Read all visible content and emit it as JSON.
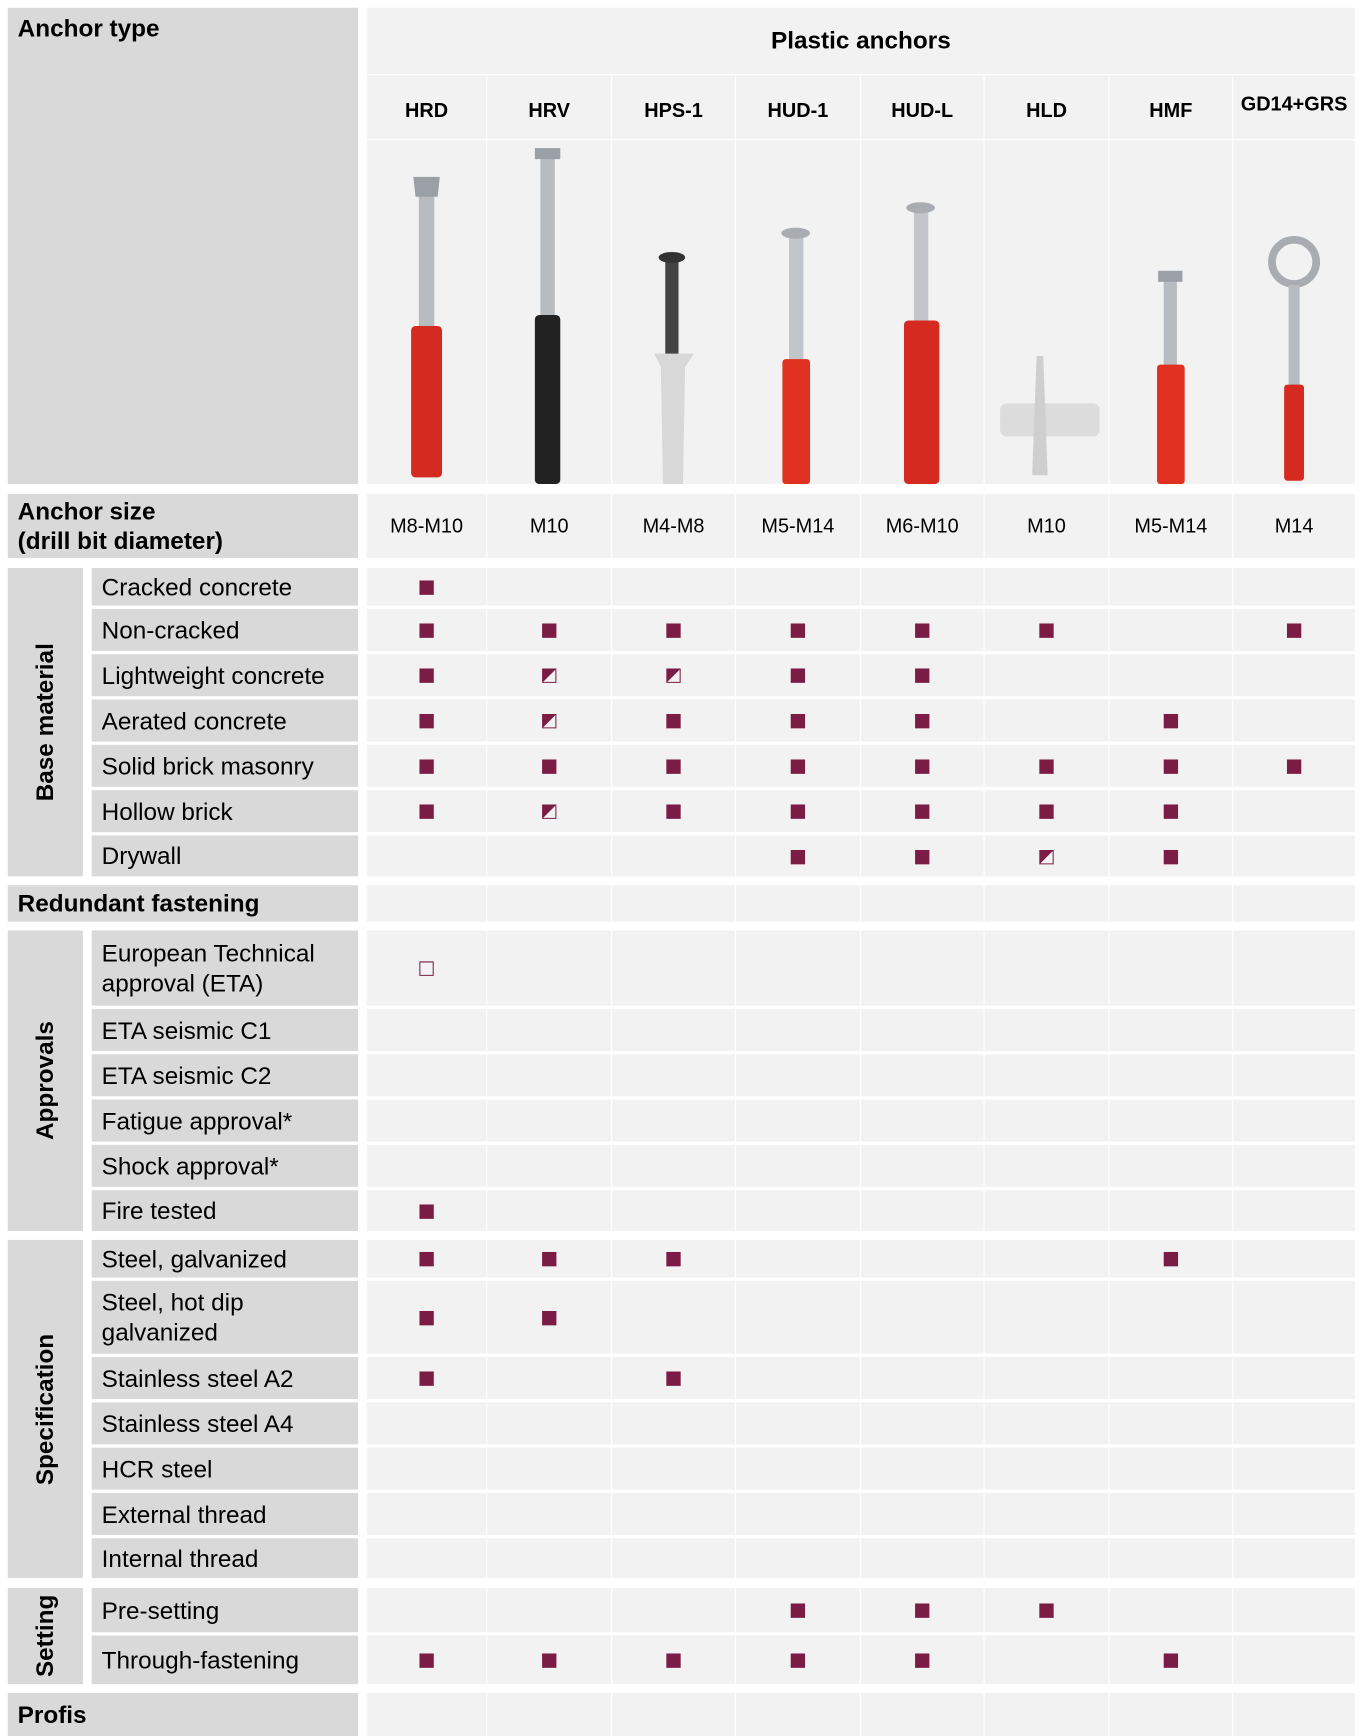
{
  "header": {
    "title": "Anchor type",
    "group": "Plastic anchors",
    "size_label": "Anchor size\n(drill bit diameter)"
  },
  "columns": [
    {
      "name": "HRD",
      "size": "M8-M10"
    },
    {
      "name": "HRV",
      "size": "M10"
    },
    {
      "name": "HPS-1",
      "size": "M4-M8"
    },
    {
      "name": "HUD-1",
      "size": "M5-M14"
    },
    {
      "name": "HUD-L",
      "size": "M6-M10"
    },
    {
      "name": "HLD",
      "size": "M10"
    },
    {
      "name": "HMF",
      "size": "M5-M14"
    },
    {
      "name": "GD14+GRS",
      "size": "M14"
    }
  ],
  "sections": [
    {
      "title": "Base material",
      "rows": [
        {
          "label": "Cracked concrete",
          "marks": [
            "■",
            null,
            null,
            null,
            null,
            null,
            null,
            null
          ]
        },
        {
          "label": "Non-cracked",
          "marks": [
            "■",
            "■",
            "■",
            "■",
            "■",
            "■",
            null,
            "■"
          ]
        },
        {
          "label": "Lightweight concrete",
          "marks": [
            "■",
            "◩",
            "◩",
            "■",
            "■",
            null,
            null,
            null
          ]
        },
        {
          "label": "Aerated concrete",
          "marks": [
            "■",
            "◩",
            "■",
            "■",
            "■",
            null,
            "■",
            null
          ]
        },
        {
          "label": "Solid brick masonry",
          "marks": [
            "■",
            "■",
            "■",
            "■",
            "■",
            "■",
            "■",
            "■"
          ]
        },
        {
          "label": "Hollow brick",
          "marks": [
            "■",
            "◩",
            "■",
            "■",
            "■",
            "■",
            "■",
            null
          ]
        },
        {
          "label": "Drywall",
          "marks": [
            null,
            null,
            null,
            "■",
            "■",
            "◩",
            "■",
            null
          ]
        }
      ]
    },
    {
      "title": "Redundant fastening",
      "marks": [
        null,
        null,
        null,
        null,
        null,
        null,
        null,
        null
      ]
    },
    {
      "title": "Approvals",
      "rows": [
        {
          "label": "European Technical\napproval (ETA)",
          "marks": [
            "□",
            null,
            null,
            null,
            null,
            null,
            null,
            null
          ]
        },
        {
          "label": "ETA seismic C1",
          "marks": [
            null,
            null,
            null,
            null,
            null,
            null,
            null,
            null
          ]
        },
        {
          "label": "ETA seismic C2",
          "marks": [
            null,
            null,
            null,
            null,
            null,
            null,
            null,
            null
          ]
        },
        {
          "label": "Fatigue approval*",
          "marks": [
            null,
            null,
            null,
            null,
            null,
            null,
            null,
            null
          ]
        },
        {
          "label": "Shock approval*",
          "marks": [
            null,
            null,
            null,
            null,
            null,
            null,
            null,
            null
          ]
        },
        {
          "label": "Fire tested",
          "marks": [
            "■",
            null,
            null,
            null,
            null,
            null,
            null,
            null
          ]
        }
      ]
    },
    {
      "title": "Specification",
      "rows": [
        {
          "label": "Steel, galvanized",
          "marks": [
            "■",
            "■",
            "■",
            null,
            null,
            null,
            "■",
            null
          ]
        },
        {
          "label": "Steel, hot dip\ngalvanized",
          "marks": [
            "■",
            "■",
            null,
            null,
            null,
            null,
            null,
            null
          ]
        },
        {
          "label": "Stainless steel A2",
          "marks": [
            "■",
            null,
            "■",
            null,
            null,
            null,
            null,
            null
          ]
        },
        {
          "label": "Stainless steel A4",
          "marks": [
            null,
            null,
            null,
            null,
            null,
            null,
            null,
            null
          ]
        },
        {
          "label": "HCR steel",
          "marks": [
            null,
            null,
            null,
            null,
            null,
            null,
            null,
            null
          ]
        },
        {
          "label": "External thread",
          "marks": [
            null,
            null,
            null,
            null,
            null,
            null,
            null,
            null
          ]
        },
        {
          "label": "Internal thread",
          "marks": [
            null,
            null,
            null,
            null,
            null,
            null,
            null,
            null
          ]
        }
      ]
    },
    {
      "title": "Setting",
      "rows": [
        {
          "label": "Pre-setting",
          "marks": [
            null,
            null,
            null,
            "■",
            "■",
            "■",
            null,
            null
          ]
        },
        {
          "label": "Through-fastening",
          "marks": [
            "■",
            "■",
            "■",
            "■",
            "■",
            null,
            "■",
            null
          ]
        }
      ]
    },
    {
      "title": "Profis",
      "marks": [
        null,
        null,
        null,
        null,
        null,
        null,
        null,
        null
      ]
    }
  ]
}
